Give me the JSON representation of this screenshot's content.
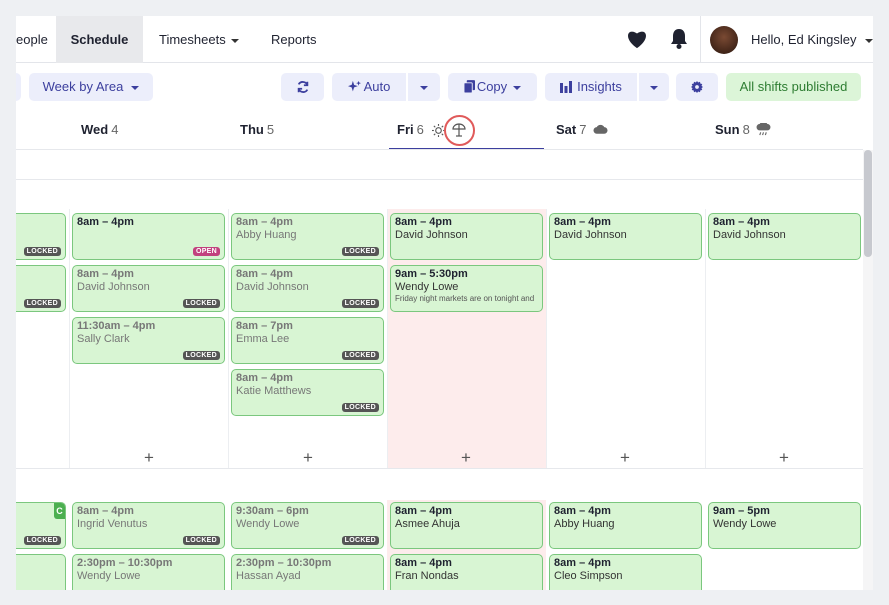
{
  "nav": {
    "tabs": [
      "eople",
      "Schedule",
      "Timesheets",
      "Reports"
    ],
    "user": "Hello, Ed Kingsley"
  },
  "toolbar": {
    "view": "Week by Area",
    "auto": "Auto",
    "copy": "Copy",
    "insights": "Insights",
    "published": "All shifts published"
  },
  "days": [
    {
      "name": "Wed",
      "num": "4"
    },
    {
      "name": "Thu",
      "num": "5"
    },
    {
      "name": "Fri",
      "num": "6"
    },
    {
      "name": "Sat",
      "num": "7"
    },
    {
      "name": "Sun",
      "num": "8"
    }
  ],
  "badges": {
    "locked": "LOCKED",
    "open": "OPEN",
    "partial": "C"
  },
  "shifts": {
    "wed": [
      {
        "time": "8am – 4pm",
        "name": "",
        "badge": "OPEN"
      },
      {
        "time": "8am – 4pm",
        "name": "David Johnson",
        "badge": "LOCKED"
      },
      {
        "time": "11:30am – 4pm",
        "name": "Sally Clark",
        "badge": "LOCKED"
      },
      {
        "time": "8am – 4pm",
        "name": "Ingrid Venutus",
        "badge": "LOCKED"
      },
      {
        "time": "2:30pm – 10:30pm",
        "name": "Wendy Lowe",
        "badge": ""
      }
    ],
    "thu": [
      {
        "time": "8am – 4pm",
        "name": "Abby Huang",
        "badge": "LOCKED"
      },
      {
        "time": "8am – 4pm",
        "name": "David Johnson",
        "badge": "LOCKED"
      },
      {
        "time": "8am – 7pm",
        "name": "Emma Lee",
        "badge": "LOCKED"
      },
      {
        "time": "8am – 4pm",
        "name": "Katie Matthews",
        "badge": "LOCKED"
      },
      {
        "time": "9:30am – 6pm",
        "name": "Wendy Lowe",
        "badge": "LOCKED"
      },
      {
        "time": "2:30pm – 10:30pm",
        "name": "Hassan Ayad",
        "badge": ""
      }
    ],
    "fri": [
      {
        "time": "8am – 4pm",
        "name": "David Johnson",
        "badge": ""
      },
      {
        "time": "9am – 5:30pm",
        "name": "Wendy Lowe",
        "note": "Friday night markets are on tonight and",
        "badge": ""
      },
      {
        "time": "8am – 4pm",
        "name": "Asmee Ahuja",
        "badge": ""
      },
      {
        "time": "8am – 4pm",
        "name": "Fran Nondas",
        "badge": ""
      }
    ],
    "sat": [
      {
        "time": "8am – 4pm",
        "name": "David Johnson",
        "badge": ""
      },
      {
        "time": "8am – 4pm",
        "name": "Abby Huang",
        "badge": ""
      },
      {
        "time": "8am – 4pm",
        "name": "Cleo Simpson",
        "badge": ""
      }
    ],
    "sun": [
      {
        "time": "8am – 4pm",
        "name": "David Johnson",
        "badge": ""
      },
      {
        "time": "9am – 5pm",
        "name": "Wendy Lowe",
        "badge": ""
      }
    ]
  },
  "icons": {
    "favorite": "heart-icon",
    "notifications": "bell-icon",
    "refresh": "refresh-icon",
    "auto": "sparkle-icon",
    "copy": "copy-icon",
    "insights": "bar-chart-icon",
    "settings": "gear-icon",
    "fri_weather": [
      "sun-icon",
      "beach-umbrella-icon"
    ],
    "sat_weather": "cloud-icon",
    "sun_weather": "rain-cloud-icon"
  },
  "colors": {
    "accent": "#3c3f9e",
    "shift_bg": "#d8f5d3",
    "published": "#2e7d32",
    "today_bg": "#fdecec",
    "open_badge": "#c2417e"
  }
}
